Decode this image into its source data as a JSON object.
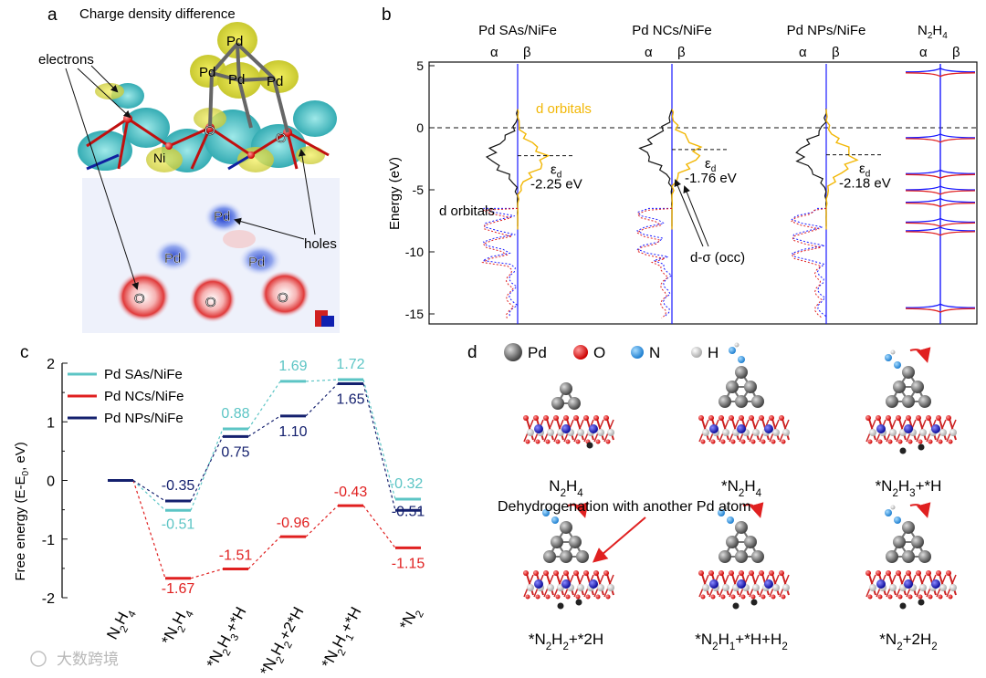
{
  "panel_labels": {
    "a": "a",
    "b": "b",
    "c": "c",
    "d": "d"
  },
  "panel_a": {
    "title": "Charge density difference",
    "electrons_label": "electrons",
    "holes_label": "holes",
    "top_atoms": [
      "Pd",
      "Pd",
      "Pd",
      "Pd",
      "O",
      "O",
      "Ni"
    ],
    "map_atoms": [
      "Pd",
      "Pd",
      "Pd",
      "O",
      "O",
      "O"
    ]
  },
  "panel_b": {
    "ylabel": "Energy (eV)",
    "y_ticks": [
      "5",
      "0",
      "-5",
      "-10",
      "-15"
    ],
    "spin_alpha": "α",
    "spin_beta": "β",
    "d_orbitals_label": "d orbitals",
    "d_sigma_label": "d-σ (occ)",
    "epsilon_label": "ε",
    "epsilon_sub": "d",
    "n2h4_label": {
      "main": "N",
      "sub1": "2",
      "mid": "H",
      "sub2": "4"
    },
    "colors": {
      "alpha_d": "#111111",
      "beta_d": "#f2b705",
      "alpha_n": "#1a1aff",
      "beta_n": "#e02020"
    }
  },
  "chart_data": {
    "type": "line",
    "title": "",
    "ylabel": "Free energy (E-E0, eV)",
    "ylabel_parts": {
      "main": "Free energy (E-E",
      "sub": "0",
      "tail": ", eV)"
    },
    "ylim": [
      -2,
      2
    ],
    "y_ticks": [
      "2",
      "1",
      "0",
      "-1",
      "-2"
    ],
    "categories": [
      {
        "parts": [
          [
            "N",
            ""
          ],
          [
            "2",
            "sub"
          ],
          [
            "H",
            ""
          ],
          [
            "4",
            "sub"
          ]
        ]
      },
      {
        "parts": [
          [
            "*N",
            ""
          ],
          [
            "2",
            "sub"
          ],
          [
            "H",
            ""
          ],
          [
            "4",
            "sub"
          ]
        ]
      },
      {
        "parts": [
          [
            "*N",
            ""
          ],
          [
            "2",
            "sub"
          ],
          [
            "H",
            ""
          ],
          [
            "3",
            "sub"
          ],
          [
            "+*H",
            ""
          ]
        ]
      },
      {
        "parts": [
          [
            "*N",
            ""
          ],
          [
            "2",
            "sub"
          ],
          [
            "H",
            ""
          ],
          [
            "2",
            "sub"
          ],
          [
            "+2*H",
            ""
          ]
        ]
      },
      {
        "parts": [
          [
            "*N",
            ""
          ],
          [
            "2",
            "sub"
          ],
          [
            "H",
            ""
          ],
          [
            "1",
            "sub"
          ],
          [
            "+*H",
            ""
          ]
        ]
      },
      {
        "parts": [
          [
            "*N",
            ""
          ],
          [
            "2",
            "sub"
          ]
        ]
      }
    ],
    "series": [
      {
        "name": "Pd SAs/NiFe",
        "color": "#5cc5c5",
        "values": [
          0,
          -0.51,
          0.88,
          1.69,
          1.72,
          -0.32
        ],
        "labels": [
          "",
          "-0.51",
          "0.88",
          "1.69",
          "1.72",
          "-0.32"
        ]
      },
      {
        "name": "Pd NCs/NiFe",
        "color": "#e02020",
        "values": [
          0,
          -1.67,
          -1.51,
          -0.96,
          -0.43,
          -1.15
        ],
        "labels": [
          "",
          "-1.67",
          "-1.51",
          "-0.96",
          "-0.43",
          "-1.15"
        ]
      },
      {
        "name": "Pd NPs/NiFe",
        "color": "#14206e",
        "values": [
          0,
          -0.35,
          0.75,
          1.1,
          1.65,
          -0.51
        ],
        "labels": [
          "",
          "-0.35",
          "0.75",
          "1.10",
          "1.65",
          "-0.51"
        ]
      }
    ],
    "legend": "top-left"
  },
  "dos_panels": [
    {
      "title": "Pd SAs/NiFe",
      "ed_value": "-2.25 eV",
      "ed": -2.25
    },
    {
      "title": "Pd NCs/NiFe",
      "ed_value": "-1.76 eV",
      "ed": -1.76
    },
    {
      "title": "Pd NPs/NiFe",
      "ed_value": "-2.18 eV",
      "ed": -2.18
    }
  ],
  "panel_d": {
    "legend": [
      "Pd",
      "O",
      "N",
      "H"
    ],
    "legend_colors": [
      "#666666",
      "#dd2222",
      "#2a8fe0",
      "#d8d8d8"
    ],
    "structures": [
      {
        "parts": [
          [
            "N",
            ""
          ],
          [
            "2",
            "sub"
          ],
          [
            "H",
            ""
          ],
          [
            "4",
            "sub"
          ]
        ]
      },
      {
        "parts": [
          [
            "*N",
            ""
          ],
          [
            "2",
            "sub"
          ],
          [
            "H",
            ""
          ],
          [
            "4",
            "sub"
          ]
        ]
      },
      {
        "parts": [
          [
            "*N",
            ""
          ],
          [
            "2",
            "sub"
          ],
          [
            "H",
            ""
          ],
          [
            "3",
            "sub"
          ],
          [
            "+*H",
            ""
          ]
        ]
      },
      {
        "parts": [
          [
            "*N",
            ""
          ],
          [
            "2",
            "sub"
          ],
          [
            "H",
            ""
          ],
          [
            "2",
            "sub"
          ],
          [
            "+*2H",
            ""
          ]
        ]
      },
      {
        "parts": [
          [
            "*N",
            ""
          ],
          [
            "2",
            "sub"
          ],
          [
            "H",
            ""
          ],
          [
            "1",
            "sub"
          ],
          [
            "+*H+H",
            ""
          ],
          [
            "2",
            "sub"
          ]
        ]
      },
      {
        "parts": [
          [
            "*N",
            ""
          ],
          [
            "2",
            "sub"
          ],
          [
            "+2H",
            ""
          ],
          [
            "2",
            "sub"
          ]
        ]
      }
    ],
    "dehydro_note": "Dehydrogenation with another Pd atom"
  },
  "watermark": "大数跨境"
}
